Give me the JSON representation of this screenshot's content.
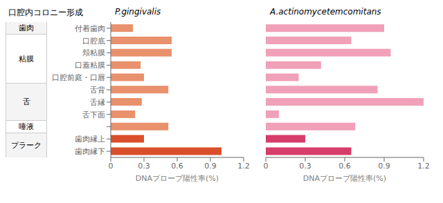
{
  "col_header": "口腔内コロニー形成",
  "groups": [
    {
      "name": "歯肉",
      "size": 1
    },
    {
      "name": "粘膜",
      "size": 4
    },
    {
      "name": "舌",
      "size": 3
    },
    {
      "name": "唾液",
      "size": 1
    },
    {
      "name": "プラーク",
      "size": 2
    }
  ],
  "chart_data": [
    {
      "type": "bar",
      "orientation": "horizontal",
      "title": "P.gingivalis",
      "xlabel": "DNAプローブ陽性率(%)",
      "categories": [
        "付着歯肉",
        "口腔底",
        "頬粘膜",
        "口蓋粘膜",
        "口腔前庭・口唇",
        "舌背",
        "舌縁",
        "舌下面",
        null,
        "歯肉縁上",
        "歯肉縁下"
      ],
      "values": [
        0.2,
        0.55,
        0.55,
        0.27,
        0.3,
        0.52,
        0.28,
        0.22,
        0.52,
        0.3,
        1.0
      ],
      "colors": [
        "#e8916c",
        "#e8916c",
        "#e8916c",
        "#e8916c",
        "#e8916c",
        "#e8916c",
        "#e8916c",
        "#e8916c",
        "#e8916c",
        "#d94f2b",
        "#d94f2b"
      ],
      "xlim": [
        0,
        1.2
      ],
      "xticks": [
        0,
        0.3,
        0.6,
        0.9,
        1.2
      ],
      "grid": false
    },
    {
      "type": "bar",
      "orientation": "horizontal",
      "title": "A.actinomycetemcomitans",
      "xlabel": "DNAプローブ陽性率(%)",
      "categories": [
        "付着歯肉",
        "口腔底",
        "頬粘膜",
        "口蓋粘膜",
        "口腔前庭・口唇",
        "舌背",
        "舌縁",
        "舌下面",
        null,
        "歯肉縁上",
        "歯肉縁下"
      ],
      "values": [
        0.9,
        0.65,
        0.95,
        0.42,
        0.25,
        0.85,
        1.2,
        0.1,
        0.68,
        0.3,
        0.65
      ],
      "colors": [
        "#f0a0b8",
        "#f0a0b8",
        "#f0a0b8",
        "#f0a0b8",
        "#f0a0b8",
        "#f0a0b8",
        "#f0a0b8",
        "#f0a0b8",
        "#f0a0b8",
        "#d63d6b",
        "#d63d6b"
      ],
      "xlim": [
        0,
        1.2
      ],
      "xticks": [
        0,
        0.3,
        0.6,
        0.9,
        1.2
      ],
      "grid": false
    }
  ]
}
